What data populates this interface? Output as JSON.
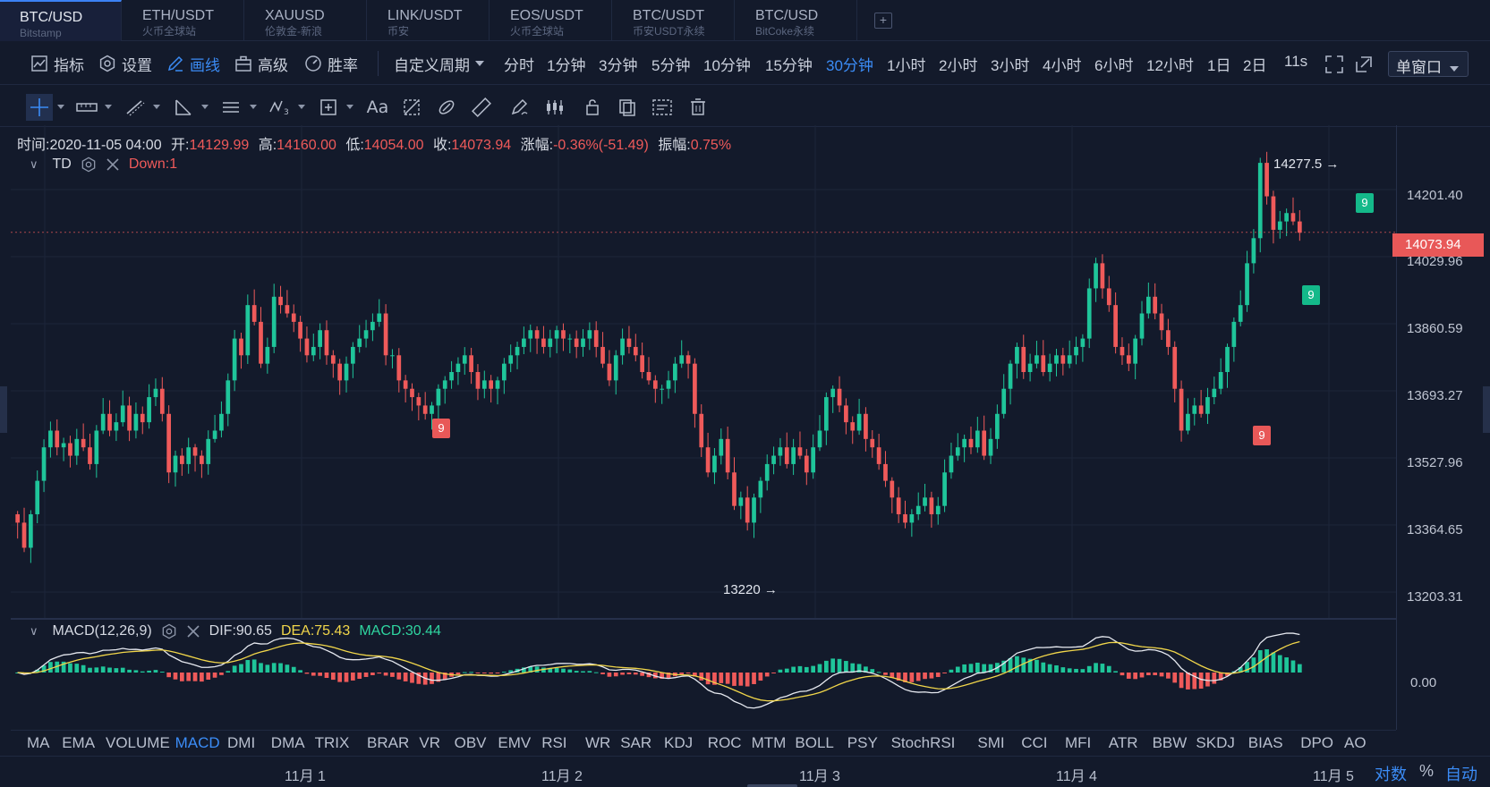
{
  "symbol_tabs": [
    {
      "symbol": "BTC/USD",
      "exchange": "Bitstamp"
    },
    {
      "symbol": "ETH/USDT",
      "exchange": "火币全球站"
    },
    {
      "symbol": "XAUUSD",
      "exchange": "伦敦金-新浪"
    },
    {
      "symbol": "LINK/USDT",
      "exchange": "币安"
    },
    {
      "symbol": "EOS/USDT",
      "exchange": "火币全球站"
    },
    {
      "symbol": "BTC/USDT",
      "exchange": "币安USDT永续"
    },
    {
      "symbol": "BTC/USD",
      "exchange": "BitCoke永续"
    }
  ],
  "add_tab": "+",
  "toolbar": {
    "indicator": "指标",
    "settings": "设置",
    "draw": "画线",
    "advanced": "高级",
    "winrate": "胜率",
    "custom_period": "自定义周期",
    "periods": [
      "分时",
      "1分钟",
      "3分钟",
      "5分钟",
      "10分钟",
      "15分钟",
      "30分钟",
      "1小时",
      "2小时",
      "3小时",
      "4小时",
      "6小时",
      "12小时",
      "1日",
      "2日",
      "11s"
    ],
    "active_period": "30分钟",
    "window_mode": "单窗口"
  },
  "ohlc": {
    "time_label": "时间:",
    "time": "2020-11-05 04:00",
    "open_label": "开:",
    "open": "14129.99",
    "high_label": "高:",
    "high": "14160.00",
    "low_label": "低:",
    "low": "14054.00",
    "close_label": "收:",
    "close": "14073.94",
    "change_label": "涨幅:",
    "change": "-0.36%(-51.49)",
    "amp_label": "振幅:",
    "amp": "0.75%"
  },
  "td_legend": {
    "name": "TD",
    "value": "Down:1"
  },
  "macd_legend": {
    "name": "MACD(12,26,9)",
    "dif": "DIF:90.65",
    "dea": "DEA:75.43",
    "macd": "MACD:30.44"
  },
  "price_axis": [
    "14201.40",
    "14029.96",
    "13860.59",
    "13693.27",
    "13527.96",
    "13364.65",
    "13203.31"
  ],
  "last_price": "14073.94",
  "macd_axis": "0.00",
  "annotations": {
    "high": "14277.5",
    "low": "13220",
    "td_mark": "9"
  },
  "indicators": [
    "MA",
    "EMA",
    "VOLUME",
    "MACD",
    "DMI",
    "DMA",
    "TRIX",
    "BRAR",
    "VR",
    "OBV",
    "EMV",
    "RSI",
    "WR",
    "SAR",
    "KDJ",
    "ROC",
    "MTM",
    "BOLL",
    "PSY",
    "StochRSI",
    "SMI",
    "CCI",
    "MFI",
    "ATR",
    "BBW",
    "SKDJ",
    "BIAS",
    "DPO",
    "AO"
  ],
  "active_indicator": "MACD",
  "dates": [
    "11月 1",
    "11月 2",
    "11月 3",
    "11月 4",
    "11月 5"
  ],
  "axis_options": {
    "log": "对数",
    "pct": "%",
    "auto": "自动"
  },
  "colors": {
    "up": "#1fc59a",
    "down": "#ef5a5a",
    "accent": "#3b8cf6",
    "dea": "#f1d64a",
    "dif": "#e6e9f0"
  },
  "chart_data": {
    "type": "candlestick",
    "interval": "30m",
    "ylim": [
      13150,
      14330
    ],
    "closes": [
      13380,
      13320,
      13400,
      13480,
      13560,
      13600,
      13560,
      13570,
      13540,
      13580,
      13560,
      13520,
      13600,
      13640,
      13600,
      13620,
      13660,
      13600,
      13640,
      13620,
      13680,
      13700,
      13640,
      13500,
      13540,
      13520,
      13560,
      13540,
      13520,
      13580,
      13600,
      13640,
      13720,
      13820,
      13780,
      13900,
      13860,
      13760,
      13800,
      13920,
      13900,
      13880,
      13860,
      13820,
      13780,
      13800,
      13840,
      13780,
      13760,
      13720,
      13760,
      13800,
      13820,
      13840,
      13860,
      13880,
      13780,
      13780,
      13720,
      13700,
      13680,
      13660,
      13640,
      13660,
      13700,
      13720,
      13740,
      13760,
      13780,
      13740,
      13700,
      13720,
      13700,
      13720,
      13760,
      13780,
      13800,
      13820,
      13840,
      13820,
      13800,
      13820,
      13840,
      13820,
      13820,
      13800,
      13820,
      13840,
      13800,
      13760,
      13720,
      13780,
      13820,
      13800,
      13780,
      13740,
      13720,
      13700,
      13700,
      13720,
      13760,
      13780,
      13760,
      13640,
      13560,
      13500,
      13540,
      13580,
      13500,
      13420,
      13440,
      13380,
      13440,
      13480,
      13520,
      13540,
      13560,
      13520,
      13560,
      13540,
      13500,
      13560,
      13600,
      13680,
      13700,
      13660,
      13620,
      13600,
      13640,
      13580,
      13560,
      13520,
      13480,
      13440,
      13400,
      13380,
      13400,
      13420,
      13440,
      13400,
      13420,
      13500,
      13540,
      13560,
      13580,
      13560,
      13600,
      13540,
      13580,
      13640,
      13700,
      13760,
      13800,
      13740,
      13760,
      13780,
      13740,
      13760,
      13780,
      13760,
      13780,
      13800,
      13820,
      13940,
      14000,
      13940,
      13900,
      13800,
      13780,
      13760,
      13820,
      13880,
      13920,
      13880,
      13840,
      13800,
      13700,
      13600,
      13640,
      13660,
      13640,
      13680,
      13700,
      13740,
      13800,
      13860,
      13900,
      14000,
      14060,
      14240,
      14160,
      14080,
      14100,
      14120,
      14100,
      14073
    ],
    "td_down_9_at": [
      "11月 1 late",
      "11月 4 late"
    ],
    "td_up_9_at": [
      "11月 5 early",
      "11月 5"
    ],
    "macd": {
      "dif_last": 90.65,
      "dea_last": 75.43,
      "hist_last": 30.44
    }
  }
}
